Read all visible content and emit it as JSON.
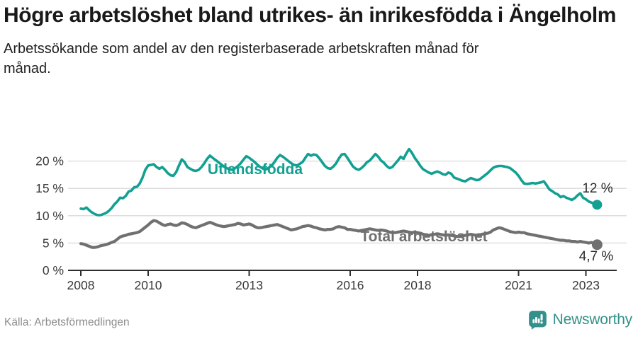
{
  "header": {
    "title": "Högre arbetslöshet bland utrikes- än inrikesfödda i Ängelholm",
    "subtitle": "Arbetssökande som andel av den registerbaserade arbetskraften månad för månad."
  },
  "footer": {
    "source": "Källa: Arbetsförmedlingen",
    "brand": "Newsworthy",
    "brand_icon": "speech-bubble-bar-chart-icon"
  },
  "colors": {
    "foreign_born_line": "#12a092",
    "total_line": "#707070",
    "axis": "#2e2e2e",
    "grid": "#d9d9d9",
    "tick_text": "#3a3a3a",
    "value_label_text": "#2b2b2b",
    "brand_teal": "#33908a",
    "title_text": "#191919",
    "source_text": "#8d8d8d"
  },
  "chart_data": {
    "type": "line",
    "title": "Högre arbetslöshet bland utrikes- än inrikesfödda i Ängelholm",
    "x_unit": "month",
    "start_month": "2008-01",
    "end_month": "2023-05",
    "ylim": [
      0,
      23
    ],
    "grid": "horizontal",
    "legend": "inline-labels",
    "y_ticks": {
      "values": [
        0,
        5,
        10,
        15,
        20
      ],
      "labels": [
        "0 %",
        "5 %",
        "10 %",
        "15 %",
        "20 %"
      ]
    },
    "x_ticks": {
      "years": [
        2008,
        2010,
        2013,
        2016,
        2018,
        2021,
        2023
      ],
      "labels": [
        "2008",
        "2010",
        "2013",
        "2016",
        "2018",
        "2021",
        "2023"
      ]
    },
    "series": [
      {
        "name": "Utlandsfödda",
        "color_key": "foreign_born_line",
        "end_label": "12 %",
        "end_value": 12.0,
        "values": [
          11.3,
          11.2,
          11.5,
          11.0,
          10.6,
          10.3,
          10.1,
          10.1,
          10.3,
          10.5,
          10.9,
          11.4,
          12.1,
          12.6,
          13.3,
          13.2,
          13.6,
          14.4,
          14.6,
          15.2,
          15.3,
          15.9,
          17.0,
          18.4,
          19.2,
          19.3,
          19.4,
          18.9,
          18.6,
          18.9,
          18.4,
          17.8,
          17.4,
          17.3,
          18.0,
          19.2,
          20.3,
          19.8,
          18.9,
          18.6,
          18.3,
          18.2,
          18.4,
          18.9,
          19.6,
          20.4,
          21.0,
          20.6,
          20.2,
          19.8,
          19.4,
          19.0,
          18.7,
          18.5,
          18.4,
          18.7,
          19.1,
          19.6,
          20.3,
          20.9,
          20.6,
          20.2,
          19.8,
          19.3,
          18.9,
          18.6,
          18.5,
          18.8,
          19.2,
          19.8,
          20.6,
          21.1,
          20.8,
          20.4,
          20.0,
          19.6,
          19.3,
          19.2,
          19.5,
          19.8,
          20.6,
          21.3,
          21.0,
          21.2,
          21.1,
          20.5,
          19.8,
          19.1,
          18.7,
          18.6,
          19.0,
          19.6,
          20.5,
          21.2,
          21.3,
          20.6,
          19.8,
          19.0,
          18.6,
          18.4,
          18.7,
          19.2,
          19.8,
          20.1,
          20.7,
          21.3,
          20.8,
          20.1,
          19.7,
          19.1,
          18.7,
          18.9,
          19.5,
          20.1,
          20.8,
          20.4,
          21.4,
          22.2,
          21.5,
          20.6,
          19.9,
          19.1,
          18.5,
          18.2,
          17.9,
          17.7,
          17.9,
          18.1,
          17.9,
          17.6,
          17.5,
          17.9,
          17.7,
          17.0,
          16.8,
          16.6,
          16.4,
          16.3,
          16.6,
          16.9,
          16.7,
          16.5,
          16.6,
          17.0,
          17.4,
          17.8,
          18.3,
          18.8,
          19.0,
          19.1,
          19.1,
          19.0,
          18.9,
          18.7,
          18.3,
          17.9,
          17.3,
          16.5,
          15.9,
          15.8,
          15.9,
          16.0,
          15.9,
          16.0,
          16.1,
          16.3,
          15.6,
          14.8,
          14.5,
          14.1,
          13.9,
          13.4,
          13.6,
          13.3,
          13.1,
          12.9,
          13.2,
          13.7,
          14.1,
          13.3,
          13.0,
          12.6,
          12.4,
          12.2,
          12.0
        ]
      },
      {
        "name": "Total arbetslöshet",
        "color_key": "total_line",
        "end_label": "4,7 %",
        "end_value": 4.7,
        "values": [
          4.9,
          4.8,
          4.6,
          4.4,
          4.2,
          4.2,
          4.3,
          4.5,
          4.6,
          4.7,
          4.9,
          5.1,
          5.3,
          5.7,
          6.1,
          6.3,
          6.4,
          6.6,
          6.7,
          6.8,
          6.9,
          7.1,
          7.5,
          7.9,
          8.3,
          8.8,
          9.1,
          9.0,
          8.7,
          8.4,
          8.2,
          8.4,
          8.5,
          8.3,
          8.2,
          8.4,
          8.7,
          8.6,
          8.4,
          8.1,
          7.9,
          7.8,
          8.0,
          8.2,
          8.4,
          8.6,
          8.8,
          8.6,
          8.4,
          8.2,
          8.1,
          8.0,
          8.1,
          8.2,
          8.3,
          8.4,
          8.6,
          8.5,
          8.3,
          8.4,
          8.5,
          8.3,
          8.0,
          7.8,
          7.8,
          7.9,
          8.0,
          8.1,
          8.2,
          8.3,
          8.4,
          8.2,
          8.0,
          7.8,
          7.6,
          7.4,
          7.5,
          7.6,
          7.8,
          8.0,
          8.1,
          8.2,
          8.1,
          7.9,
          7.8,
          7.6,
          7.5,
          7.4,
          7.5,
          7.5,
          7.6,
          7.9,
          8.0,
          7.9,
          7.8,
          7.5,
          7.5,
          7.4,
          7.3,
          7.2,
          7.3,
          7.4,
          7.5,
          7.6,
          7.5,
          7.4,
          7.3,
          7.4,
          7.3,
          7.2,
          7.0,
          6.9,
          6.9,
          7.0,
          7.1,
          7.2,
          7.1,
          7.0,
          6.9,
          7.0,
          6.9,
          6.8,
          6.6,
          6.5,
          6.4,
          6.5,
          6.6,
          6.7,
          6.6,
          6.5,
          6.4,
          6.5,
          6.4,
          6.3,
          6.2,
          6.2,
          6.3,
          6.4,
          6.5,
          6.6,
          6.5,
          6.4,
          6.5,
          6.6,
          6.7,
          6.8,
          7.0,
          7.4,
          7.6,
          7.8,
          7.7,
          7.5,
          7.3,
          7.1,
          7.0,
          6.9,
          7.0,
          6.9,
          6.9,
          6.7,
          6.6,
          6.5,
          6.4,
          6.3,
          6.2,
          6.1,
          6.0,
          5.9,
          5.8,
          5.7,
          5.6,
          5.5,
          5.5,
          5.4,
          5.4,
          5.3,
          5.3,
          5.2,
          5.3,
          5.2,
          5.1,
          5.0,
          5.1,
          4.9,
          4.7
        ]
      }
    ]
  }
}
